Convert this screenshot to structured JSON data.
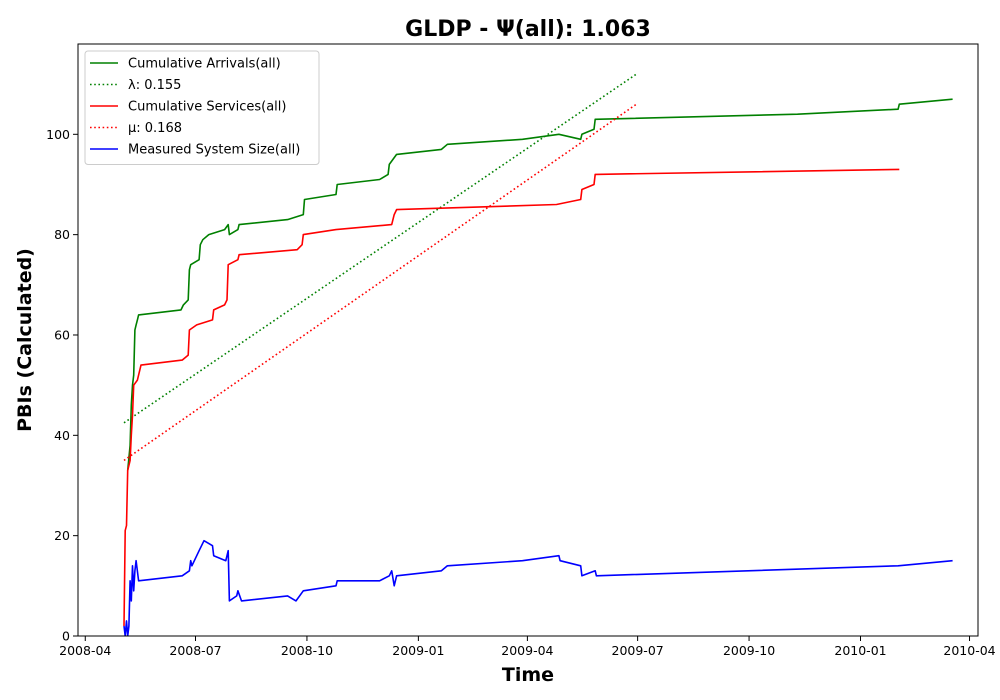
{
  "chart_data": {
    "type": "line",
    "title": "GLDP -  Ψ(all): 1.063",
    "xlabel": "Time",
    "ylabel": "PBIs (Calculated)",
    "xlim": [
      "2008-03-26",
      "2010-04-08"
    ],
    "ylim": [
      0,
      118
    ],
    "xticks": [
      "2008-04",
      "2008-07",
      "2008-10",
      "2009-01",
      "2009-04",
      "2009-07",
      "2009-10",
      "2010-01",
      "2010-04"
    ],
    "yticks": [
      0,
      20,
      40,
      60,
      80,
      100
    ],
    "grid": false,
    "legend_position": "top-left",
    "series": [
      {
        "name": "Cumulative Arrivals(all)",
        "color": "#008000",
        "style": "solid",
        "points": [
          [
            "2008-05-06",
            33
          ],
          [
            "2008-05-08",
            38
          ],
          [
            "2008-05-09",
            46
          ],
          [
            "2008-05-10",
            50
          ],
          [
            "2008-05-11",
            52
          ],
          [
            "2008-05-12",
            61
          ],
          [
            "2008-05-13",
            62
          ],
          [
            "2008-05-14",
            63
          ],
          [
            "2008-05-15",
            64
          ],
          [
            "2008-06-19",
            65
          ],
          [
            "2008-06-21",
            66
          ],
          [
            "2008-06-25",
            67
          ],
          [
            "2008-06-26",
            73
          ],
          [
            "2008-06-27",
            74
          ],
          [
            "2008-07-04",
            75
          ],
          [
            "2008-07-05",
            78
          ],
          [
            "2008-07-07",
            79
          ],
          [
            "2008-07-12",
            80
          ],
          [
            "2008-07-25",
            81
          ],
          [
            "2008-07-28",
            82
          ],
          [
            "2008-07-29",
            80
          ],
          [
            "2008-08-05",
            81
          ],
          [
            "2008-08-06",
            82
          ],
          [
            "2008-09-15",
            83
          ],
          [
            "2008-09-28",
            84
          ],
          [
            "2008-09-29",
            87
          ],
          [
            "2008-10-25",
            88
          ],
          [
            "2008-10-26",
            90
          ],
          [
            "2008-11-30",
            91
          ],
          [
            "2008-12-07",
            92
          ],
          [
            "2008-12-08",
            94
          ],
          [
            "2008-12-14",
            96
          ],
          [
            "2009-01-20",
            97
          ],
          [
            "2009-01-25",
            98
          ],
          [
            "2009-03-28",
            99
          ],
          [
            "2009-04-27",
            100
          ],
          [
            "2009-05-15",
            99
          ],
          [
            "2009-05-16",
            100
          ],
          [
            "2009-05-26",
            101
          ],
          [
            "2009-05-27",
            103
          ],
          [
            "2009-11-10",
            104
          ],
          [
            "2010-02-01",
            105
          ],
          [
            "2010-02-02",
            106
          ],
          [
            "2010-03-18",
            107
          ]
        ]
      },
      {
        "name": "λ: 0.155",
        "color": "#008000",
        "style": "dotted",
        "points": [
          [
            "2008-05-03",
            42.5
          ],
          [
            "2009-06-30",
            112
          ]
        ]
      },
      {
        "name": "Cumulative Services(all)",
        "color": "#ff0000",
        "style": "solid",
        "points": [
          [
            "2008-05-03",
            2
          ],
          [
            "2008-05-04",
            21
          ],
          [
            "2008-05-05",
            22
          ],
          [
            "2008-05-06",
            33
          ],
          [
            "2008-05-08",
            35
          ],
          [
            "2008-05-09",
            40
          ],
          [
            "2008-05-10",
            44
          ],
          [
            "2008-05-11",
            50
          ],
          [
            "2008-05-14",
            51
          ],
          [
            "2008-05-17",
            54
          ],
          [
            "2008-06-20",
            55
          ],
          [
            "2008-06-25",
            56
          ],
          [
            "2008-06-26",
            61
          ],
          [
            "2008-07-02",
            62
          ],
          [
            "2008-07-15",
            63
          ],
          [
            "2008-07-16",
            65
          ],
          [
            "2008-07-25",
            66
          ],
          [
            "2008-07-27",
            67
          ],
          [
            "2008-07-28",
            74
          ],
          [
            "2008-08-05",
            75
          ],
          [
            "2008-08-06",
            76
          ],
          [
            "2008-09-23",
            77
          ],
          [
            "2008-09-27",
            78
          ],
          [
            "2008-09-28",
            80
          ],
          [
            "2008-10-25",
            81
          ],
          [
            "2008-12-10",
            82
          ],
          [
            "2008-12-12",
            84
          ],
          [
            "2008-12-14",
            85
          ],
          [
            "2009-04-25",
            86
          ],
          [
            "2009-05-15",
            87
          ],
          [
            "2009-05-16",
            89
          ],
          [
            "2009-05-26",
            90
          ],
          [
            "2009-05-27",
            92
          ],
          [
            "2010-02-02",
            93
          ]
        ]
      },
      {
        "name": "μ: 0.168",
        "color": "#ff0000",
        "style": "dotted",
        "points": [
          [
            "2008-05-03",
            35
          ],
          [
            "2009-06-30",
            106
          ]
        ]
      },
      {
        "name": "Measured System Size(all)",
        "color": "#0000ff",
        "style": "solid",
        "points": [
          [
            "2008-05-03",
            2
          ],
          [
            "2008-05-04",
            0
          ],
          [
            "2008-05-05",
            3
          ],
          [
            "2008-05-06",
            0
          ],
          [
            "2008-05-07",
            2
          ],
          [
            "2008-05-08",
            11
          ],
          [
            "2008-05-09",
            7
          ],
          [
            "2008-05-10",
            14
          ],
          [
            "2008-05-11",
            9
          ],
          [
            "2008-05-12",
            13
          ],
          [
            "2008-05-13",
            15
          ],
          [
            "2008-05-15",
            11
          ],
          [
            "2008-06-20",
            12
          ],
          [
            "2008-06-26",
            13
          ],
          [
            "2008-06-27",
            15
          ],
          [
            "2008-06-28",
            14
          ],
          [
            "2008-07-04",
            17
          ],
          [
            "2008-07-08",
            19
          ],
          [
            "2008-07-15",
            18
          ],
          [
            "2008-07-16",
            16
          ],
          [
            "2008-07-26",
            15
          ],
          [
            "2008-07-28",
            17
          ],
          [
            "2008-07-29",
            7
          ],
          [
            "2008-08-04",
            8
          ],
          [
            "2008-08-05",
            9
          ],
          [
            "2008-08-08",
            7
          ],
          [
            "2008-09-15",
            8
          ],
          [
            "2008-09-22",
            7
          ],
          [
            "2008-09-28",
            9
          ],
          [
            "2008-10-25",
            10
          ],
          [
            "2008-10-26",
            11
          ],
          [
            "2008-11-30",
            11
          ],
          [
            "2008-12-08",
            12
          ],
          [
            "2008-12-10",
            13
          ],
          [
            "2008-12-12",
            10
          ],
          [
            "2008-12-14",
            12
          ],
          [
            "2009-01-20",
            13
          ],
          [
            "2009-01-25",
            14
          ],
          [
            "2009-03-28",
            15
          ],
          [
            "2009-04-27",
            16
          ],
          [
            "2009-04-28",
            15
          ],
          [
            "2009-05-15",
            14
          ],
          [
            "2009-05-16",
            12
          ],
          [
            "2009-05-27",
            13
          ],
          [
            "2009-05-28",
            12
          ],
          [
            "2010-02-01",
            14
          ],
          [
            "2010-03-18",
            15
          ]
        ]
      }
    ]
  }
}
